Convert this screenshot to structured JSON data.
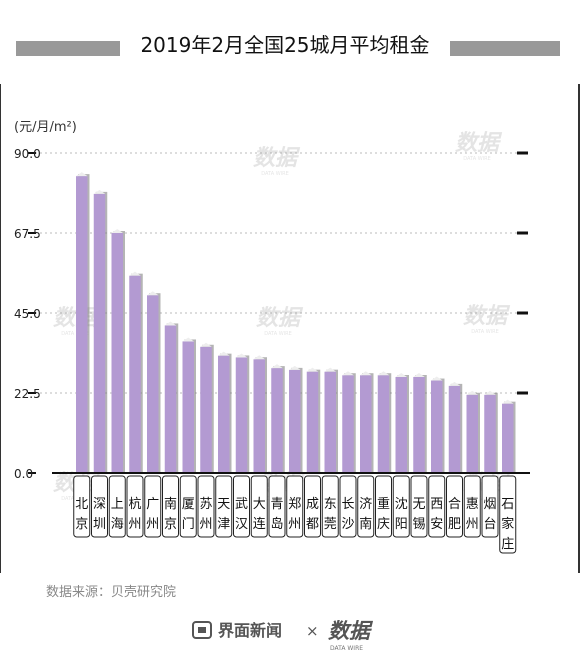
{
  "chart_data": {
    "type": "bar",
    "title": "2019年2月全国25城月平均租金",
    "ylabel": "(元/月/m²)",
    "xlabel": "",
    "ylim": [
      0,
      90
    ],
    "yticks": [
      "0.0",
      "22.5",
      "45.0",
      "67.5",
      "90.0"
    ],
    "ytick_values": [
      0,
      22.5,
      45,
      67.5,
      90
    ],
    "grid": true,
    "categories": [
      "北京",
      "深圳",
      "上海",
      "杭州",
      "广州",
      "南京",
      "厦门",
      "苏州",
      "天津",
      "武汉",
      "大连",
      "青岛",
      "郑州",
      "成都",
      "东莞",
      "长沙",
      "济南",
      "重庆",
      "沈阳",
      "无锡",
      "西安",
      "合肥",
      "惠州",
      "烟台",
      "石家庄"
    ],
    "category_lines": [
      [
        "北",
        "京"
      ],
      [
        "深",
        "圳"
      ],
      [
        "上",
        "海"
      ],
      [
        "杭",
        "州"
      ],
      [
        "广",
        "州"
      ],
      [
        "南",
        "京"
      ],
      [
        "厦",
        "门"
      ],
      [
        "苏",
        "州"
      ],
      [
        "天",
        "津"
      ],
      [
        "武",
        "汉"
      ],
      [
        "大",
        "连"
      ],
      [
        "青",
        "岛"
      ],
      [
        "郑",
        "州"
      ],
      [
        "成",
        "都"
      ],
      [
        "东",
        "莞"
      ],
      [
        "长",
        "沙"
      ],
      [
        "济",
        "南"
      ],
      [
        "重",
        "庆"
      ],
      [
        "沈",
        "阳"
      ],
      [
        "无",
        "锡"
      ],
      [
        "西",
        "安"
      ],
      [
        "合",
        "肥"
      ],
      [
        "惠",
        "州"
      ],
      [
        "烟",
        "台"
      ],
      [
        "石",
        "家",
        "庄"
      ]
    ],
    "values": [
      83.5,
      78.5,
      67.5,
      55.5,
      50.0,
      41.5,
      37.0,
      35.5,
      33.0,
      32.5,
      32.0,
      29.5,
      29.0,
      28.5,
      28.5,
      27.5,
      27.5,
      27.5,
      27.0,
      27.0,
      26.0,
      24.5,
      22.0,
      22.0,
      19.5
    ]
  },
  "colors": {
    "bar": "#b39ad2",
    "bar_shadow": "#777777",
    "title_bar": "#999999",
    "grid": "#bbbbbb",
    "axis": "#111111"
  },
  "source": "数据来源：贝壳研究院",
  "footer": {
    "brand1": "界面新闻",
    "times": "×",
    "brand2": "数据",
    "brand2_sub": "DATA WIRE"
  },
  "watermark": {
    "text": "数据",
    "sub": "DATA WIRE"
  }
}
